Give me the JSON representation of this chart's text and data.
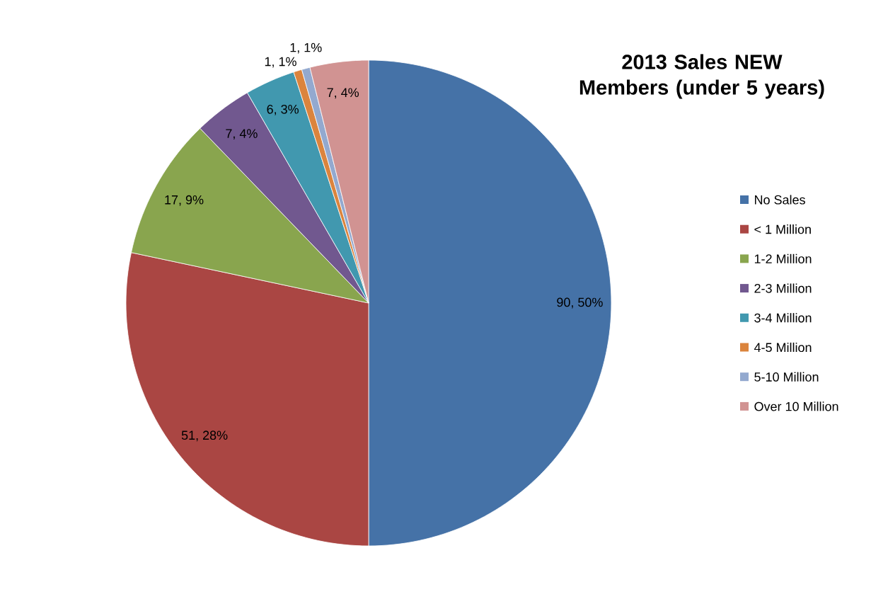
{
  "chart_data": {
    "type": "pie",
    "title": "2013 Sales NEW Members (under 5 years)",
    "categories": [
      "No Sales",
      "< 1 Million",
      "1-2 Million",
      "2-3 Million",
      "3-4 Million",
      "4-5 Million",
      "5-10 Million",
      "Over 10 Million"
    ],
    "values": [
      90,
      51,
      17,
      7,
      6,
      1,
      1,
      7
    ],
    "colors": [
      "#4572a7",
      "#aa4643",
      "#89a54e",
      "#71588f",
      "#4198af",
      "#db843d",
      "#93a9cf",
      "#d19392"
    ],
    "value_labels": [
      "90, 50%",
      "51, 28%",
      "17, 9%",
      "7, 4%",
      "6, 3%",
      "1, 1%",
      "1, 1%",
      "7, 4%"
    ],
    "legend": "right"
  }
}
